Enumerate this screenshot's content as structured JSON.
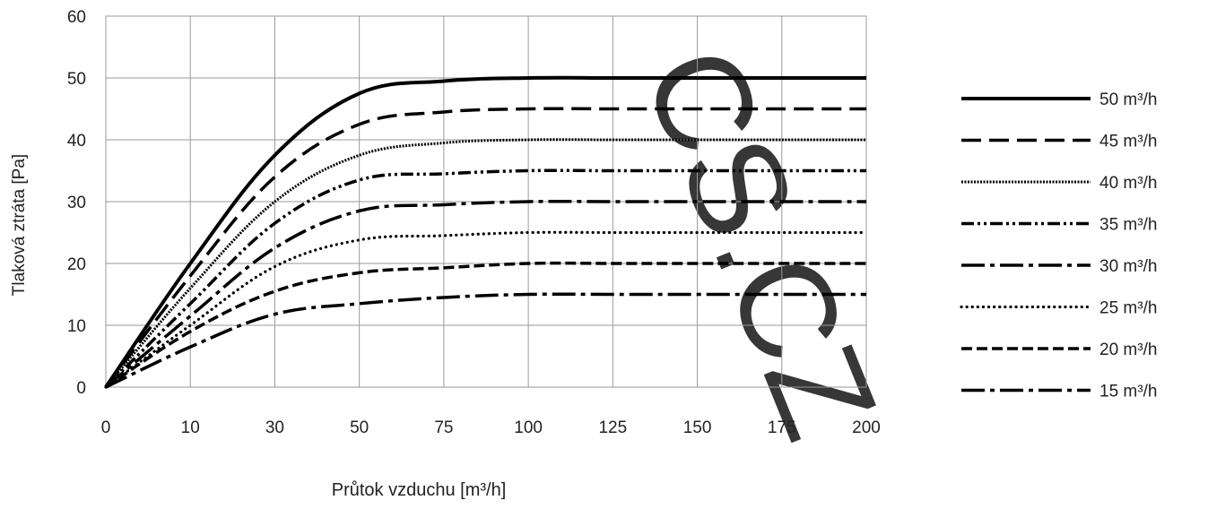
{
  "watermark": "CS.CZ",
  "chart_data": {
    "type": "line",
    "title": "",
    "xlabel": "Průtok vzduchu [m³/h]",
    "ylabel": "Tlaková ztráta [Pa]",
    "x_tick_labels": [
      "0",
      "10",
      "30",
      "50",
      "75",
      "100",
      "125",
      "150",
      "175",
      "200"
    ],
    "y_ticks": [
      0,
      10,
      20,
      30,
      40,
      50,
      60
    ],
    "ylim": [
      0,
      60
    ],
    "x_scale": "categorical-ticks (non-linear spacing)",
    "grid": true,
    "legend_position": "right",
    "series": [
      {
        "name": "50 m³/h",
        "dash": "solid-thick",
        "points": [
          [
            0,
            0
          ],
          [
            10,
            20
          ],
          [
            30,
            37.5
          ],
          [
            50,
            47.5
          ],
          [
            75,
            49.5
          ],
          [
            100,
            50
          ],
          [
            125,
            50
          ],
          [
            150,
            50
          ],
          [
            175,
            50
          ],
          [
            200,
            50
          ]
        ]
      },
      {
        "name": "45 m³/h",
        "dash": "long-dash",
        "points": [
          [
            0,
            0
          ],
          [
            10,
            18
          ],
          [
            30,
            34
          ],
          [
            50,
            42.5
          ],
          [
            75,
            44.5
          ],
          [
            100,
            45
          ],
          [
            125,
            45
          ],
          [
            150,
            45
          ],
          [
            175,
            45
          ],
          [
            200,
            45
          ]
        ]
      },
      {
        "name": "40 m³/h",
        "dash": "dense-dot",
        "points": [
          [
            0,
            0
          ],
          [
            10,
            16
          ],
          [
            30,
            30
          ],
          [
            50,
            37.5
          ],
          [
            75,
            39.5
          ],
          [
            100,
            40
          ],
          [
            125,
            40
          ],
          [
            150,
            40
          ],
          [
            175,
            40
          ],
          [
            200,
            40
          ]
        ]
      },
      {
        "name": "35 m³/h",
        "dash": "dash-dot-dot",
        "points": [
          [
            0,
            0
          ],
          [
            10,
            13.5
          ],
          [
            30,
            26.5
          ],
          [
            50,
            33.5
          ],
          [
            75,
            34.5
          ],
          [
            100,
            35
          ],
          [
            125,
            35
          ],
          [
            150,
            35
          ],
          [
            175,
            35
          ],
          [
            200,
            35
          ]
        ]
      },
      {
        "name": "30 m³/h",
        "dash": "long-dash-dot",
        "points": [
          [
            0,
            0
          ],
          [
            10,
            11.5
          ],
          [
            30,
            22.5
          ],
          [
            50,
            28.5
          ],
          [
            75,
            29.5
          ],
          [
            100,
            30
          ],
          [
            125,
            30
          ],
          [
            150,
            30
          ],
          [
            175,
            30
          ],
          [
            200,
            30
          ]
        ]
      },
      {
        "name": "25 m³/h",
        "dash": "round-dot",
        "points": [
          [
            0,
            0
          ],
          [
            10,
            10
          ],
          [
            30,
            19.5
          ],
          [
            50,
            23.8
          ],
          [
            75,
            24.5
          ],
          [
            100,
            25
          ],
          [
            125,
            25
          ],
          [
            150,
            25
          ],
          [
            175,
            25
          ],
          [
            200,
            25
          ]
        ]
      },
      {
        "name": "20 m³/h",
        "dash": "dash",
        "points": [
          [
            0,
            0
          ],
          [
            10,
            9
          ],
          [
            30,
            15.5
          ],
          [
            50,
            18.5
          ],
          [
            75,
            19.3
          ],
          [
            100,
            20
          ],
          [
            125,
            20
          ],
          [
            150,
            20
          ],
          [
            175,
            20
          ],
          [
            200,
            20
          ]
        ]
      },
      {
        "name": "15 m³/h",
        "dash": "long-dash-dot",
        "points": [
          [
            0,
            0
          ],
          [
            10,
            6.5
          ],
          [
            30,
            11.8
          ],
          [
            50,
            13.5
          ],
          [
            75,
            14.5
          ],
          [
            100,
            15
          ],
          [
            125,
            15
          ],
          [
            150,
            15
          ],
          [
            175,
            15
          ],
          [
            200,
            15
          ]
        ]
      }
    ]
  }
}
